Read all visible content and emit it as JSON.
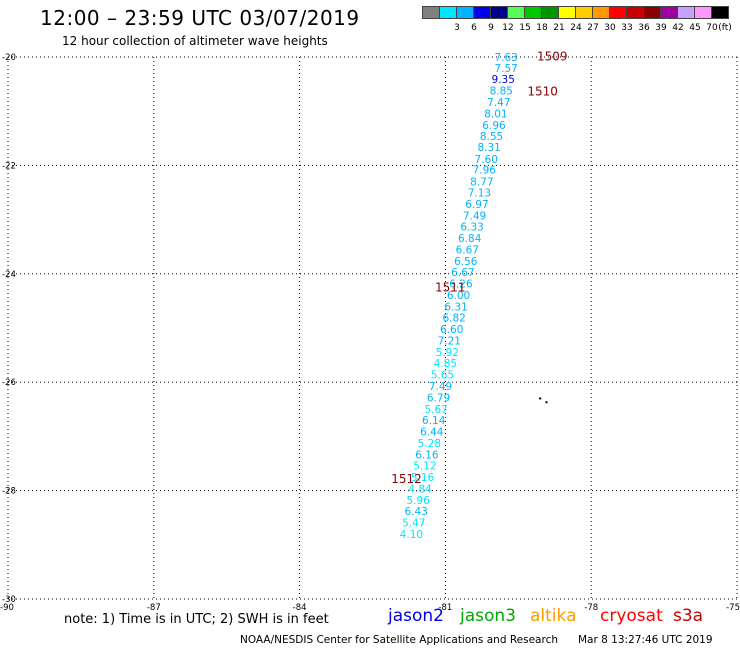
{
  "header": {
    "title": "12:00 – 23:59 UTC 03/07/2019",
    "subtitle": "12 hour collection of altimeter wave heights"
  },
  "legend": {
    "unit": "(ft)",
    "swatches": [
      {
        "color": "#808080",
        "label": ""
      },
      {
        "color": "#00e6ff",
        "label": "3"
      },
      {
        "color": "#00b4ff",
        "label": "6"
      },
      {
        "color": "#0000e6",
        "label": "9"
      },
      {
        "color": "#00008c",
        "label": "12"
      },
      {
        "color": "#55ff55",
        "label": "15"
      },
      {
        "color": "#00c800",
        "label": "18"
      },
      {
        "color": "#009600",
        "label": "21"
      },
      {
        "color": "#ffff00",
        "label": "24"
      },
      {
        "color": "#ffcc00",
        "label": "27"
      },
      {
        "color": "#ff9900",
        "label": "30"
      },
      {
        "color": "#ff0000",
        "label": "33"
      },
      {
        "color": "#c80000",
        "label": "36"
      },
      {
        "color": "#8c0000",
        "label": "39"
      },
      {
        "color": "#a000a0",
        "label": "42"
      },
      {
        "color": "#c8a0ff",
        "label": "45"
      },
      {
        "color": "#ff96ff",
        "label": "70"
      },
      {
        "color": "#000000",
        "label": ""
      }
    ]
  },
  "map": {
    "lon_range": [
      -90,
      -75
    ],
    "lat_range": [
      -30,
      -20
    ],
    "x_ticks": [
      {
        "value": -90,
        "label": "-90"
      },
      {
        "value": -87,
        "label": "-87"
      },
      {
        "value": -84,
        "label": "-84"
      },
      {
        "value": -81,
        "label": "-81"
      },
      {
        "value": -78,
        "label": "-78"
      },
      {
        "value": -75,
        "label": "-75"
      }
    ],
    "y_ticks": [
      {
        "value": -20,
        "label": "-20"
      },
      {
        "value": -22,
        "label": "-22"
      },
      {
        "value": -24,
        "label": "-24"
      },
      {
        "value": -26,
        "label": "-26"
      },
      {
        "value": -28,
        "label": "-28"
      },
      {
        "value": -30,
        "label": "-30"
      }
    ],
    "track_color": "#8b0000",
    "track_labels": [
      {
        "text": "1509",
        "lon": -78.8,
        "lat": -19.99
      },
      {
        "text": "1510",
        "lon": -79.0,
        "lat": -20.64
      },
      {
        "text": "1511",
        "lon": -80.9,
        "lat": -24.25
      },
      {
        "text": "1512",
        "lon": -81.8,
        "lat": -27.79
      }
    ],
    "dots": [
      {
        "lon": -79.05,
        "lat": -26.3
      },
      {
        "lon": -78.92,
        "lat": -26.37
      }
    ]
  },
  "observations": [
    {
      "v": "7.63",
      "c": "#00b4ff",
      "lon": -79.75,
      "lat": -20.0
    },
    {
      "v": "7.57",
      "c": "#00b4ff",
      "lon": -79.75,
      "lat": -20.2
    },
    {
      "v": "9.35",
      "c": "#0000e6",
      "lon": -79.81,
      "lat": -20.41
    },
    {
      "v": "8.85",
      "c": "#00b4ff",
      "lon": -79.85,
      "lat": -20.62
    },
    {
      "v": "7.47",
      "c": "#00b4ff",
      "lon": -79.9,
      "lat": -20.83
    },
    {
      "v": "8.01",
      "c": "#00b4ff",
      "lon": -79.96,
      "lat": -21.04
    },
    {
      "v": "6.96",
      "c": "#00b4ff",
      "lon": -80.0,
      "lat": -21.25
    },
    {
      "v": "8.55",
      "c": "#00b4ff",
      "lon": -80.05,
      "lat": -21.46
    },
    {
      "v": "8.31",
      "c": "#00b4ff",
      "lon": -80.1,
      "lat": -21.66
    },
    {
      "v": "7.60",
      "c": "#00b4ff",
      "lon": -80.16,
      "lat": -21.88
    },
    {
      "v": "7.96",
      "c": "#00b4ff",
      "lon": -80.2,
      "lat": -22.08
    },
    {
      "v": "8.77",
      "c": "#00b4ff",
      "lon": -80.25,
      "lat": -22.3
    },
    {
      "v": "7.13",
      "c": "#00b4ff",
      "lon": -80.3,
      "lat": -22.5
    },
    {
      "v": "6.97",
      "c": "#00b4ff",
      "lon": -80.35,
      "lat": -22.71
    },
    {
      "v": "7.49",
      "c": "#00b4ff",
      "lon": -80.4,
      "lat": -22.92
    },
    {
      "v": "6.33",
      "c": "#00b4ff",
      "lon": -80.45,
      "lat": -23.13
    },
    {
      "v": "6.84",
      "c": "#00b4ff",
      "lon": -80.5,
      "lat": -23.34
    },
    {
      "v": "6.67",
      "c": "#00b4ff",
      "lon": -80.55,
      "lat": -23.55
    },
    {
      "v": "6.56",
      "c": "#00b4ff",
      "lon": -80.58,
      "lat": -23.76
    },
    {
      "v": "6.67",
      "c": "#00b4ff",
      "lon": -80.64,
      "lat": -23.97
    },
    {
      "v": "6.26",
      "c": "#00b4ff",
      "lon": -80.68,
      "lat": -24.18
    },
    {
      "v": "6.00",
      "c": "#00b4ff",
      "lon": -80.73,
      "lat": -24.39
    },
    {
      "v": "6.31",
      "c": "#00b4ff",
      "lon": -80.78,
      "lat": -24.6
    },
    {
      "v": "6.82",
      "c": "#00b4ff",
      "lon": -80.82,
      "lat": -24.81
    },
    {
      "v": "6.60",
      "c": "#00b4ff",
      "lon": -80.87,
      "lat": -25.02
    },
    {
      "v": "7.21",
      "c": "#00b4ff",
      "lon": -80.92,
      "lat": -25.23
    },
    {
      "v": "5.92",
      "c": "#00e6ff",
      "lon": -80.96,
      "lat": -25.44
    },
    {
      "v": "4.85",
      "c": "#00e6ff",
      "lon": -81.0,
      "lat": -25.65
    },
    {
      "v": "5.65",
      "c": "#00e6ff",
      "lon": -81.06,
      "lat": -25.86
    },
    {
      "v": "7.49",
      "c": "#00b4ff",
      "lon": -81.1,
      "lat": -26.07
    },
    {
      "v": "6.79",
      "c": "#00b4ff",
      "lon": -81.14,
      "lat": -26.28
    },
    {
      "v": "5.67",
      "c": "#00e6ff",
      "lon": -81.19,
      "lat": -26.49
    },
    {
      "v": "6.14",
      "c": "#00b4ff",
      "lon": -81.24,
      "lat": -26.7
    },
    {
      "v": "6.44",
      "c": "#00b4ff",
      "lon": -81.28,
      "lat": -26.91
    },
    {
      "v": "5.28",
      "c": "#00e6ff",
      "lon": -81.33,
      "lat": -27.12
    },
    {
      "v": "6.16",
      "c": "#00b4ff",
      "lon": -81.38,
      "lat": -27.33
    },
    {
      "v": "5.12",
      "c": "#00e6ff",
      "lon": -81.42,
      "lat": -27.54
    },
    {
      "v": "5.16",
      "c": "#00e6ff",
      "lon": -81.47,
      "lat": -27.75
    },
    {
      "v": "4.84",
      "c": "#00e6ff",
      "lon": -81.52,
      "lat": -27.96
    },
    {
      "v": "5.96",
      "c": "#00e6ff",
      "lon": -81.56,
      "lat": -28.17
    },
    {
      "v": "6.43",
      "c": "#00b4ff",
      "lon": -81.6,
      "lat": -28.38
    },
    {
      "v": "5.47",
      "c": "#00e6ff",
      "lon": -81.65,
      "lat": -28.59
    },
    {
      "v": "4.10",
      "c": "#00e6ff",
      "lon": -81.7,
      "lat": -28.8
    }
  ],
  "note": "note: 1) Time is in UTC; 2) SWH is in feet",
  "missions": [
    {
      "name": "jason2",
      "color": "#0000e6"
    },
    {
      "name": "jason3",
      "color": "#00aa00"
    },
    {
      "name": "altika",
      "color": "#ff9900"
    },
    {
      "name": "cryosat",
      "color": "#ff0000"
    },
    {
      "name": "s3a",
      "color": "#c80000"
    }
  ],
  "footer": {
    "agency": "NOAA/NESDIS Center for Satellite Applications and Research",
    "timestamp": "Mar  8 13:27:46 UTC 2019"
  }
}
